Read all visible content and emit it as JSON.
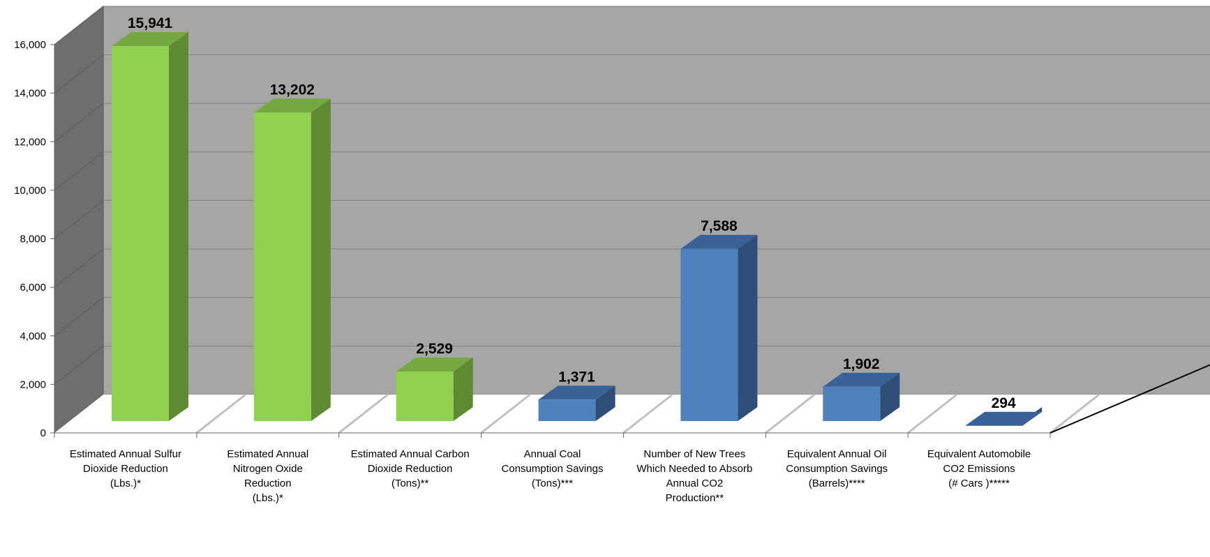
{
  "chart_data": {
    "type": "bar",
    "style": "3d-column",
    "ylim": [
      0,
      16000
    ],
    "yticks": [
      0,
      2000,
      4000,
      6000,
      8000,
      10000,
      12000,
      14000,
      16000
    ],
    "ytick_labels": [
      "0",
      "2,000",
      "4,000",
      "6,000",
      "8,000",
      "10,000",
      "12,000",
      "14,000",
      "16,000"
    ],
    "grid": true,
    "title": "",
    "xlabel": "",
    "ylabel": "",
    "categories": [
      [
        "Estimated Annual Sulfur",
        "Dioxide Reduction",
        "(Lbs.)*"
      ],
      [
        "Estimated Annual",
        "Nitrogen Oxide",
        "Reduction",
        "(Lbs.)*"
      ],
      [
        "Estimated Annual Carbon",
        "Dioxide Reduction",
        "(Tons)**"
      ],
      [
        "Annual Coal",
        "Consumption Savings",
        "(Tons)***"
      ],
      [
        "Number of New Trees",
        "Which Needed to Absorb",
        "Annual CO2",
        "Production**"
      ],
      [
        "Equivalent Annual Oil",
        "Consumption Savings",
        "(Barrels)****"
      ],
      [
        "Equivalent  Automobile",
        "CO2 Emissions",
        "(# Cars )*****"
      ]
    ],
    "values": [
      15941,
      13202,
      2529,
      1371,
      7588,
      1902,
      294
    ],
    "value_labels": [
      "15,941",
      "13,202",
      "2,529",
      "1,371",
      "7,588",
      "1,902",
      "294"
    ],
    "bar_colors": [
      "green",
      "green",
      "green",
      "blue",
      "blue",
      "blue",
      "blue"
    ],
    "colors": {
      "green_front": "#92D050",
      "green_side": "#5E8A32",
      "green_top": "#76A840",
      "blue_front": "#4F81BD",
      "blue_side": "#2F4F7A",
      "blue_top": "#3A6296",
      "wall": "#A6A6A6",
      "side_wall": "#6E6E6E",
      "floor": "#FFFFFF"
    }
  }
}
